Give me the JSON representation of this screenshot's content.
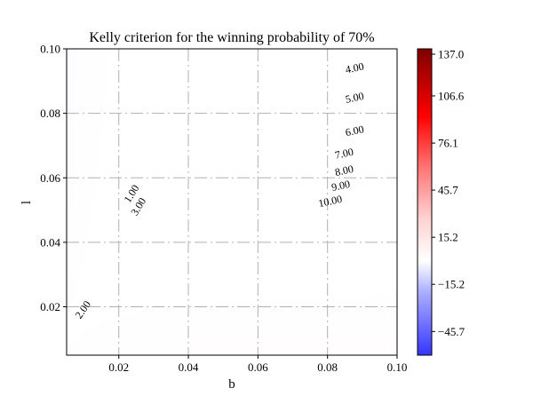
{
  "chart_data": {
    "type": "heatmap",
    "title": "Kelly criterion for the winning probability of 70%",
    "xlabel": "b",
    "ylabel": "l",
    "xlim": [
      0.005,
      0.1
    ],
    "ylim": [
      0.005,
      0.1
    ],
    "x_ticks": [
      0.02,
      0.04,
      0.06,
      0.08,
      0.1
    ],
    "x_tick_labels": [
      "0.02",
      "0.04",
      "0.06",
      "0.08",
      "0.10"
    ],
    "y_ticks": [
      0.02,
      0.04,
      0.06,
      0.08,
      0.1
    ],
    "y_tick_labels": [
      "0.02",
      "0.04",
      "0.06",
      "0.08",
      "0.10"
    ],
    "grid": true,
    "colormap": "bwr",
    "colorbar": {
      "vmin": -61,
      "vmax": 137,
      "ticks": [
        137.0,
        106.6,
        76.1,
        45.7,
        15.2,
        -15.2,
        -45.7
      ],
      "tick_labels": [
        "137.0",
        "106.6",
        "76.1",
        "45.7",
        "15.2",
        "−15.2",
        "−45.7"
      ]
    },
    "contour_labels": [
      {
        "text": "4.00",
        "x": 0.088,
        "y": 0.093
      },
      {
        "text": "5.00",
        "x": 0.088,
        "y": 0.0838
      },
      {
        "text": "6.00",
        "x": 0.088,
        "y": 0.0735
      },
      {
        "text": "7.00",
        "x": 0.085,
        "y": 0.0665
      },
      {
        "text": "8.00",
        "x": 0.085,
        "y": 0.0612
      },
      {
        "text": "9.00",
        "x": 0.084,
        "y": 0.0565
      },
      {
        "text": "10.00",
        "x": 0.081,
        "y": 0.0517
      },
      {
        "text": "1.00",
        "x": 0.0245,
        "y": 0.0545
      },
      {
        "text": "3.00",
        "x": 0.0265,
        "y": 0.0505
      },
      {
        "text": "2.00",
        "x": 0.0105,
        "y": 0.0185
      }
    ],
    "colors": {
      "cold": "#3a3aff",
      "neutral": "#ffffff",
      "warm": "#ff0000",
      "hot": "#800000"
    }
  }
}
